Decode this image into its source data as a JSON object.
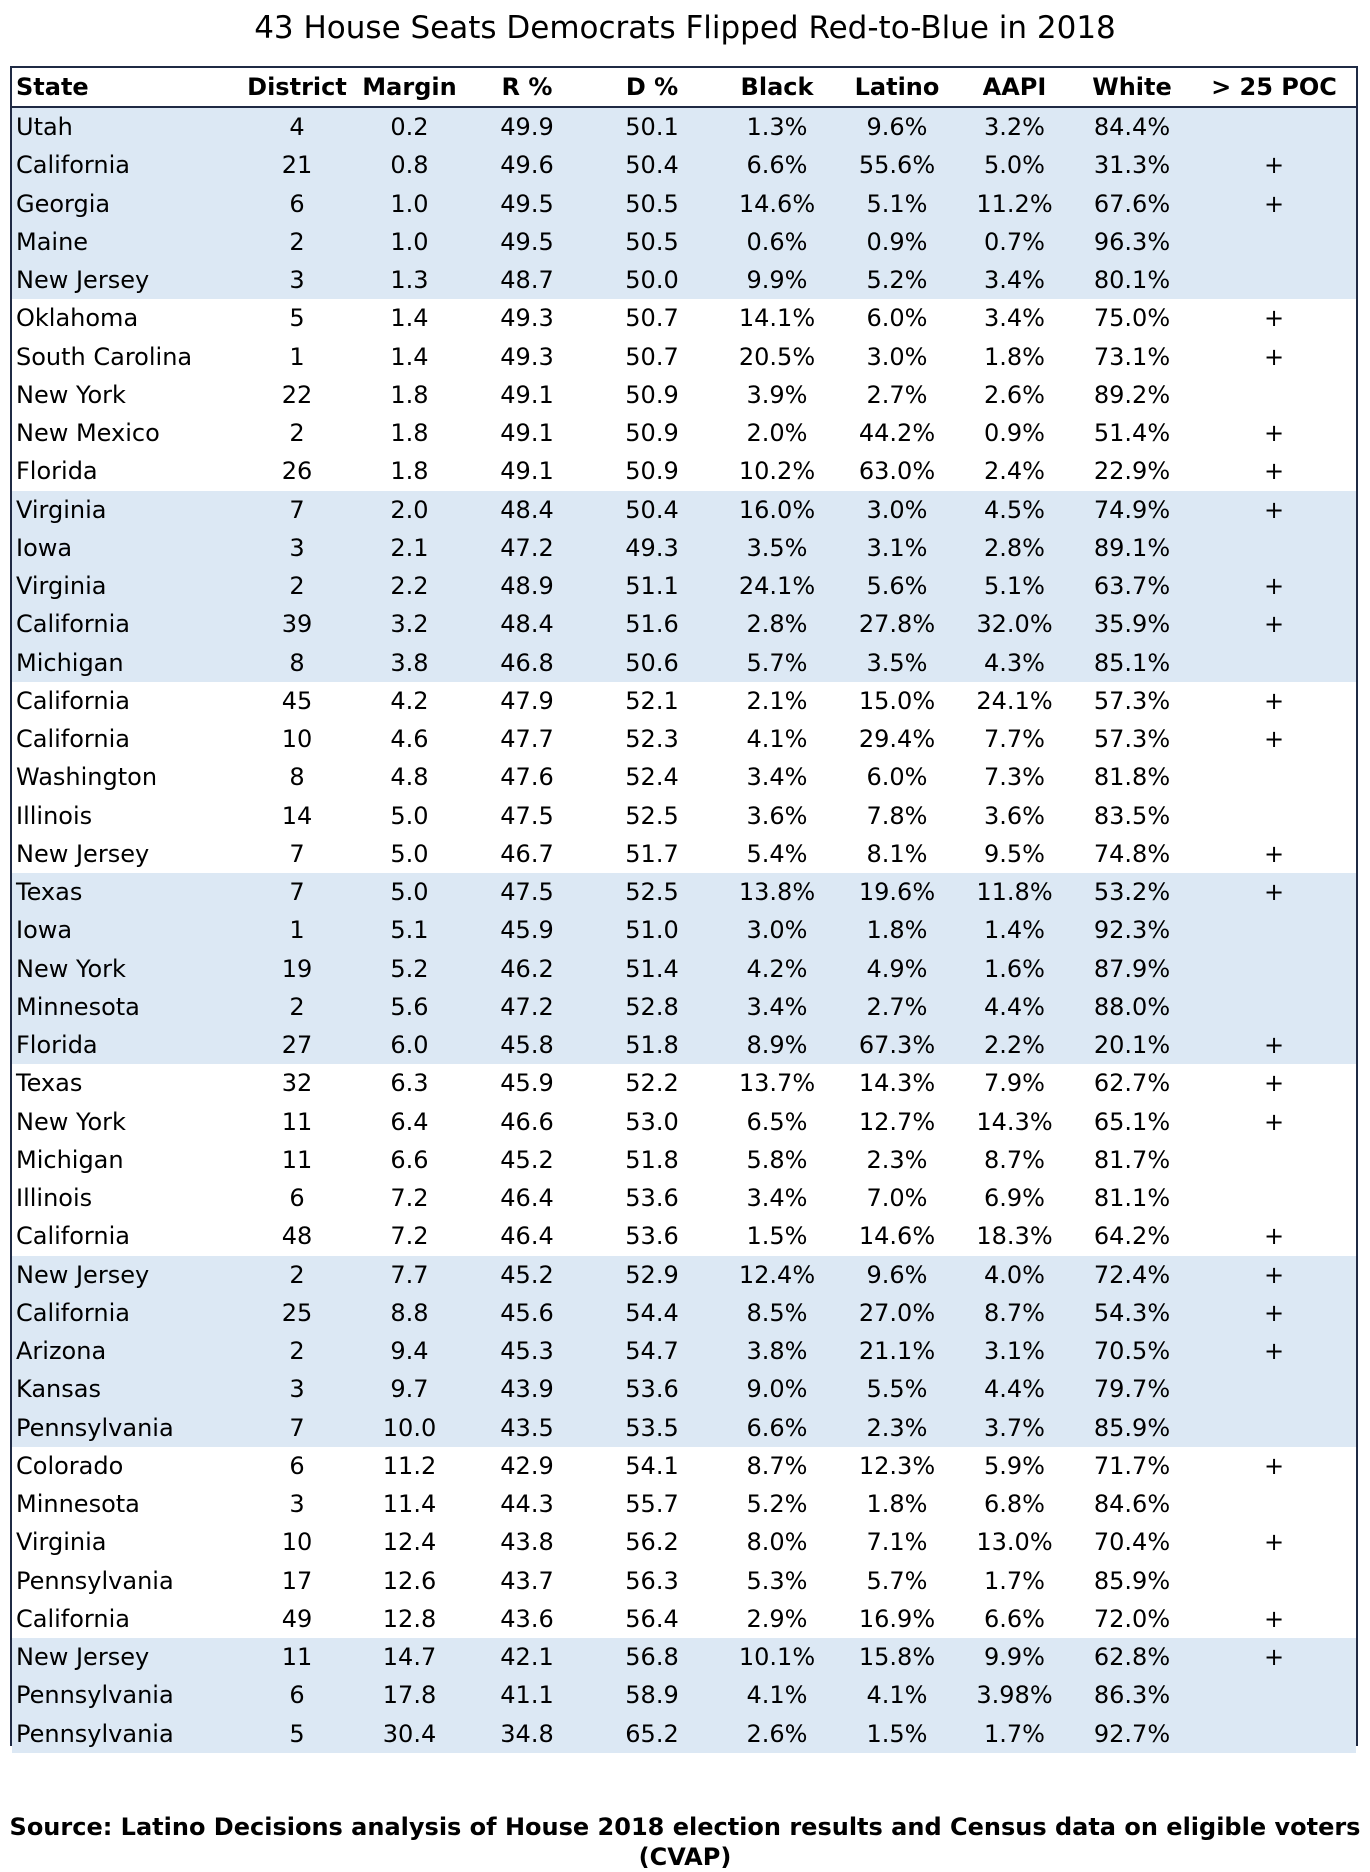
{
  "title": "43 House Seats Democrats Flipped Red-to-Blue in 2018",
  "source": "Source: Latino Decisions analysis of House 2018 election results and Census data on eligible voters (CVAP)",
  "colors": {
    "band": "#dce8f4",
    "border": "#1f2a44"
  },
  "chart_data": {
    "type": "table",
    "title": "43 House Seats Democrats Flipped Red-to-Blue in 2018",
    "columns": [
      "State",
      "District",
      "Margin",
      "R %",
      "D %",
      "Black",
      "Latino",
      "AAPI",
      "White",
      "> 25 POC"
    ],
    "rows": [
      [
        "Utah",
        "4",
        "0.2",
        "49.9",
        "50.1",
        "1.3%",
        "9.6%",
        "3.2%",
        "84.4%",
        ""
      ],
      [
        "California",
        "21",
        "0.8",
        "49.6",
        "50.4",
        "6.6%",
        "55.6%",
        "5.0%",
        "31.3%",
        "+"
      ],
      [
        "Georgia",
        "6",
        "1.0",
        "49.5",
        "50.5",
        "14.6%",
        "5.1%",
        "11.2%",
        "67.6%",
        "+"
      ],
      [
        "Maine",
        "2",
        "1.0",
        "49.5",
        "50.5",
        "0.6%",
        "0.9%",
        "0.7%",
        "96.3%",
        ""
      ],
      [
        "New Jersey",
        "3",
        "1.3",
        "48.7",
        "50.0",
        "9.9%",
        "5.2%",
        "3.4%",
        "80.1%",
        ""
      ],
      [
        "Oklahoma",
        "5",
        "1.4",
        "49.3",
        "50.7",
        "14.1%",
        "6.0%",
        "3.4%",
        "75.0%",
        "+"
      ],
      [
        "South Carolina",
        "1",
        "1.4",
        "49.3",
        "50.7",
        "20.5%",
        "3.0%",
        "1.8%",
        "73.1%",
        "+"
      ],
      [
        "New York",
        "22",
        "1.8",
        "49.1",
        "50.9",
        "3.9%",
        "2.7%",
        "2.6%",
        "89.2%",
        ""
      ],
      [
        "New Mexico",
        "2",
        "1.8",
        "49.1",
        "50.9",
        "2.0%",
        "44.2%",
        "0.9%",
        "51.4%",
        "+"
      ],
      [
        "Florida",
        "26",
        "1.8",
        "49.1",
        "50.9",
        "10.2%",
        "63.0%",
        "2.4%",
        "22.9%",
        "+"
      ],
      [
        "Virginia",
        "7",
        "2.0",
        "48.4",
        "50.4",
        "16.0%",
        "3.0%",
        "4.5%",
        "74.9%",
        "+"
      ],
      [
        "Iowa",
        "3",
        "2.1",
        "47.2",
        "49.3",
        "3.5%",
        "3.1%",
        "2.8%",
        "89.1%",
        ""
      ],
      [
        "Virginia",
        "2",
        "2.2",
        "48.9",
        "51.1",
        "24.1%",
        "5.6%",
        "5.1%",
        "63.7%",
        "+"
      ],
      [
        "California",
        "39",
        "3.2",
        "48.4",
        "51.6",
        "2.8%",
        "27.8%",
        "32.0%",
        "35.9%",
        "+"
      ],
      [
        "Michigan",
        "8",
        "3.8",
        "46.8",
        "50.6",
        "5.7%",
        "3.5%",
        "4.3%",
        "85.1%",
        ""
      ],
      [
        "California",
        "45",
        "4.2",
        "47.9",
        "52.1",
        "2.1%",
        "15.0%",
        "24.1%",
        "57.3%",
        "+"
      ],
      [
        "California",
        "10",
        "4.6",
        "47.7",
        "52.3",
        "4.1%",
        "29.4%",
        "7.7%",
        "57.3%",
        "+"
      ],
      [
        "Washington",
        "8",
        "4.8",
        "47.6",
        "52.4",
        "3.4%",
        "6.0%",
        "7.3%",
        "81.8%",
        ""
      ],
      [
        "Illinois",
        "14",
        "5.0",
        "47.5",
        "52.5",
        "3.6%",
        "7.8%",
        "3.6%",
        "83.5%",
        ""
      ],
      [
        "New Jersey",
        "7",
        "5.0",
        "46.7",
        "51.7",
        "5.4%",
        "8.1%",
        "9.5%",
        "74.8%",
        "+"
      ],
      [
        "Texas",
        "7",
        "5.0",
        "47.5",
        "52.5",
        "13.8%",
        "19.6%",
        "11.8%",
        "53.2%",
        "+"
      ],
      [
        "Iowa",
        "1",
        "5.1",
        "45.9",
        "51.0",
        "3.0%",
        "1.8%",
        "1.4%",
        "92.3%",
        ""
      ],
      [
        "New York",
        "19",
        "5.2",
        "46.2",
        "51.4",
        "4.2%",
        "4.9%",
        "1.6%",
        "87.9%",
        ""
      ],
      [
        "Minnesota",
        "2",
        "5.6",
        "47.2",
        "52.8",
        "3.4%",
        "2.7%",
        "4.4%",
        "88.0%",
        ""
      ],
      [
        "Florida",
        "27",
        "6.0",
        "45.8",
        "51.8",
        "8.9%",
        "67.3%",
        "2.2%",
        "20.1%",
        "+"
      ],
      [
        "Texas",
        "32",
        "6.3",
        "45.9",
        "52.2",
        "13.7%",
        "14.3%",
        "7.9%",
        "62.7%",
        "+"
      ],
      [
        "New York",
        "11",
        "6.4",
        "46.6",
        "53.0",
        "6.5%",
        "12.7%",
        "14.3%",
        "65.1%",
        "+"
      ],
      [
        "Michigan",
        "11",
        "6.6",
        "45.2",
        "51.8",
        "5.8%",
        "2.3%",
        "8.7%",
        "81.7%",
        ""
      ],
      [
        "Illinois",
        "6",
        "7.2",
        "46.4",
        "53.6",
        "3.4%",
        "7.0%",
        "6.9%",
        "81.1%",
        ""
      ],
      [
        "California",
        "48",
        "7.2",
        "46.4",
        "53.6",
        "1.5%",
        "14.6%",
        "18.3%",
        "64.2%",
        "+"
      ],
      [
        "New Jersey",
        "2",
        "7.7",
        "45.2",
        "52.9",
        "12.4%",
        "9.6%",
        "4.0%",
        "72.4%",
        "+"
      ],
      [
        "California",
        "25",
        "8.8",
        "45.6",
        "54.4",
        "8.5%",
        "27.0%",
        "8.7%",
        "54.3%",
        "+"
      ],
      [
        "Arizona",
        "2",
        "9.4",
        "45.3",
        "54.7",
        "3.8%",
        "21.1%",
        "3.1%",
        "70.5%",
        "+"
      ],
      [
        "Kansas",
        "3",
        "9.7",
        "43.9",
        "53.6",
        "9.0%",
        "5.5%",
        "4.4%",
        "79.7%",
        ""
      ],
      [
        "Pennsylvania",
        "7",
        "10.0",
        "43.5",
        "53.5",
        "6.6%",
        "2.3%",
        "3.7%",
        "85.9%",
        ""
      ],
      [
        "Colorado",
        "6",
        "11.2",
        "42.9",
        "54.1",
        "8.7%",
        "12.3%",
        "5.9%",
        "71.7%",
        "+"
      ],
      [
        "Minnesota",
        "3",
        "11.4",
        "44.3",
        "55.7",
        "5.2%",
        "1.8%",
        "6.8%",
        "84.6%",
        ""
      ],
      [
        "Virginia",
        "10",
        "12.4",
        "43.8",
        "56.2",
        "8.0%",
        "7.1%",
        "13.0%",
        "70.4%",
        "+"
      ],
      [
        "Pennsylvania",
        "17",
        "12.6",
        "43.7",
        "56.3",
        "5.3%",
        "5.7%",
        "1.7%",
        "85.9%",
        ""
      ],
      [
        "California",
        "49",
        "12.8",
        "43.6",
        "56.4",
        "2.9%",
        "16.9%",
        "6.6%",
        "72.0%",
        "+"
      ],
      [
        "New Jersey",
        "11",
        "14.7",
        "42.1",
        "56.8",
        "10.1%",
        "15.8%",
        "9.9%",
        "62.8%",
        "+"
      ],
      [
        "Pennsylvania",
        "6",
        "17.8",
        "41.1",
        "58.9",
        "4.1%",
        "4.1%",
        "3.98%",
        "86.3%",
        ""
      ],
      [
        "Pennsylvania",
        "5",
        "30.4",
        "34.8",
        "65.2",
        "2.6%",
        "1.5%",
        "1.7%",
        "92.7%",
        ""
      ]
    ]
  }
}
